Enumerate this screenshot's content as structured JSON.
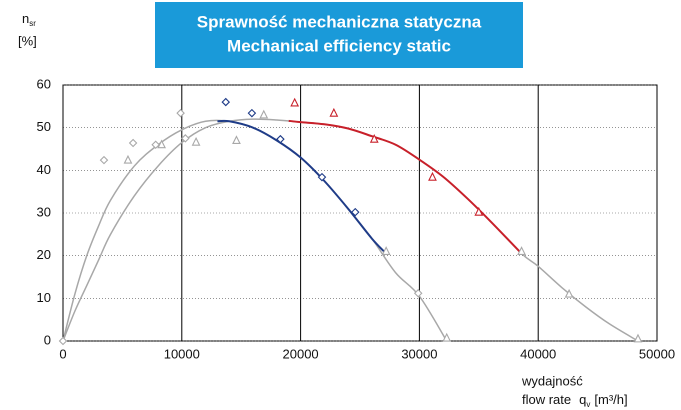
{
  "chart_data": {
    "type": "line",
    "title": [
      "Sprawność mechaniczna statyczna",
      "Mechanical efficiency static"
    ],
    "y_label": {
      "symbol": "n",
      "subscript": "sr",
      "unit": "[%]"
    },
    "x_label": {
      "line1": "wydajność",
      "text": "flow rate",
      "symbol": "q",
      "subscript": "v",
      "unit": "[m³/h]"
    },
    "xlim": [
      0,
      50000
    ],
    "xticks": [
      0,
      10000,
      20000,
      30000,
      40000,
      50000
    ],
    "ylim": [
      0,
      60
    ],
    "yticks": [
      0,
      10,
      20,
      30,
      40,
      50,
      60
    ],
    "grid": true,
    "series": [
      {
        "color": "#a8a8a8",
        "marker": "none",
        "x": [
          0,
          1000,
          2000,
          3000,
          4000,
          6000,
          8000,
          10000,
          12000,
          14000,
          16000,
          18000,
          20000,
          22000,
          24000,
          26000,
          28000,
          30000,
          32300
        ],
        "values": [
          0,
          11,
          20,
          27,
          33,
          41,
          46,
          49.5,
          51.5,
          51.5,
          50,
          47,
          43,
          37.5,
          31,
          24,
          16,
          10.5,
          0
        ]
      },
      {
        "color": "#a8a8a8",
        "marker": "none",
        "x": [
          0,
          1000,
          2000,
          3000,
          4000,
          6000,
          8000,
          10000,
          12000,
          14000,
          16000,
          18000,
          20000,
          22000,
          24000,
          26000,
          28000,
          30000,
          32000,
          34000,
          36000,
          38600,
          40000,
          42000,
          44000,
          46000,
          48400
        ],
        "values": [
          0,
          7,
          13,
          19,
          25,
          34,
          41,
          46.5,
          50,
          51.5,
          52,
          51.8,
          51.3,
          50.8,
          49.8,
          48,
          46,
          42.5,
          38.5,
          33.5,
          28,
          20.5,
          17.5,
          12.5,
          8,
          4,
          0
        ]
      },
      {
        "color": "#1f3c88",
        "marker": "none",
        "x": [
          13000,
          14000,
          16000,
          18000,
          20000,
          22000,
          24000,
          26000,
          27200
        ],
        "values": [
          51.5,
          51.5,
          50,
          47,
          43,
          37.5,
          31,
          24,
          20.5
        ]
      },
      {
        "color": "#c8202a",
        "marker": "none",
        "x": [
          19000,
          20000,
          22000,
          24000,
          26000,
          28000,
          30000,
          32000,
          34000,
          36000,
          38600
        ],
        "values": [
          51.6,
          51.3,
          50.8,
          49.8,
          48,
          46,
          42.5,
          38.5,
          33.5,
          28,
          20.5
        ]
      },
      {
        "color": "#a8a8a8",
        "marker": "diamond",
        "x": [
          0,
          3450,
          5900,
          7800,
          9900,
          10300,
          29900
        ],
        "values": [
          0,
          42.4,
          46.4,
          46,
          53.4,
          47.5,
          11.2
        ]
      },
      {
        "color": "#a8a8a8",
        "marker": "triangle",
        "x": [
          5470,
          8300,
          11200,
          14600,
          16900,
          27200,
          32300,
          38600,
          42600,
          48400
        ],
        "values": [
          42.4,
          46,
          46.6,
          47,
          53,
          21,
          0.7,
          21,
          11,
          0.5
        ]
      },
      {
        "color": "#1f3c88",
        "marker": "diamond",
        "x": [
          13700,
          15900,
          18300,
          21800,
          24600
        ],
        "values": [
          56,
          53.4,
          47.3,
          38.4,
          30.2
        ]
      },
      {
        "color": "#c8202a",
        "marker": "triangle",
        "x": [
          19500,
          22800,
          26200,
          31100,
          35000
        ],
        "values": [
          55.8,
          53.4,
          47.3,
          38.4,
          30.2
        ]
      }
    ]
  }
}
